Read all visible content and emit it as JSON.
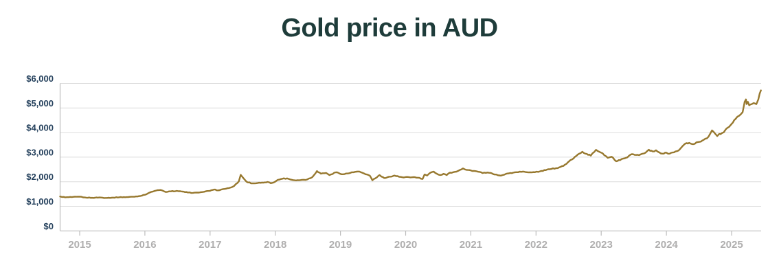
{
  "title": "Gold price in AUD",
  "colors": {
    "title": "#1e3c3a",
    "line": "#97782e",
    "y_label": "#24405c",
    "x_label": "#b0afaf",
    "gridline": "#dcdcdc",
    "axis": "#bdbdbd",
    "background": "#ffffff"
  },
  "chart_data": {
    "type": "line",
    "title": "Gold price in AUD",
    "xlabel": "",
    "ylabel": "",
    "currency": "AUD",
    "legend": "none",
    "grid": "horizontal",
    "x_ticks": [
      2015,
      2016,
      2017,
      2018,
      2019,
      2020,
      2021,
      2022,
      2023,
      2024,
      2025
    ],
    "x_range": [
      2014.7,
      2025.45
    ],
    "y_range": [
      0,
      6000
    ],
    "y_tick_values": [
      0,
      1000,
      2000,
      3000,
      4000,
      5000,
      6000
    ],
    "y_tick_labels": [
      "$0",
      "$1,000",
      "$2,000",
      "$3,000",
      "$4,000",
      "$5,000",
      "$6,000"
    ],
    "series": [
      {
        "name": "Gold price in AUD",
        "color": "#97782e",
        "points": [
          [
            2014.7,
            1400
          ],
          [
            2014.78,
            1365
          ],
          [
            2014.88,
            1375
          ],
          [
            2015.0,
            1390
          ],
          [
            2015.08,
            1360
          ],
          [
            2015.19,
            1345
          ],
          [
            2015.3,
            1360
          ],
          [
            2015.4,
            1342
          ],
          [
            2015.51,
            1355
          ],
          [
            2015.61,
            1370
          ],
          [
            2015.72,
            1375
          ],
          [
            2015.82,
            1388
          ],
          [
            2015.93,
            1420
          ],
          [
            2016.0,
            1470
          ],
          [
            2016.07,
            1555
          ],
          [
            2016.17,
            1640
          ],
          [
            2016.24,
            1665
          ],
          [
            2016.32,
            1580
          ],
          [
            2016.4,
            1608
          ],
          [
            2016.49,
            1628
          ],
          [
            2016.57,
            1600
          ],
          [
            2016.66,
            1562
          ],
          [
            2016.74,
            1548
          ],
          [
            2016.83,
            1558
          ],
          [
            2016.91,
            1592
          ],
          [
            2017.0,
            1632
          ],
          [
            2017.06,
            1682
          ],
          [
            2017.12,
            1648
          ],
          [
            2017.2,
            1700
          ],
          [
            2017.29,
            1742
          ],
          [
            2017.37,
            1830
          ],
          [
            2017.44,
            2010
          ],
          [
            2017.47,
            2280
          ],
          [
            2017.51,
            2150
          ],
          [
            2017.56,
            2000
          ],
          [
            2017.65,
            1932
          ],
          [
            2017.73,
            1948
          ],
          [
            2017.82,
            1962
          ],
          [
            2017.88,
            1992
          ],
          [
            2017.93,
            1942
          ],
          [
            2017.99,
            1988
          ],
          [
            2018.04,
            2078
          ],
          [
            2018.11,
            2122
          ],
          [
            2018.18,
            2138
          ],
          [
            2018.25,
            2082
          ],
          [
            2018.32,
            2052
          ],
          [
            2018.41,
            2078
          ],
          [
            2018.49,
            2092
          ],
          [
            2018.57,
            2190
          ],
          [
            2018.64,
            2435
          ],
          [
            2018.7,
            2330
          ],
          [
            2018.78,
            2358
          ],
          [
            2018.83,
            2272
          ],
          [
            2018.93,
            2382
          ],
          [
            2019.04,
            2305
          ],
          [
            2019.15,
            2358
          ],
          [
            2019.25,
            2412
          ],
          [
            2019.31,
            2392
          ],
          [
            2019.36,
            2338
          ],
          [
            2019.41,
            2292
          ],
          [
            2019.45,
            2248
          ],
          [
            2019.49,
            2060
          ],
          [
            2019.53,
            2132
          ],
          [
            2019.56,
            2182
          ],
          [
            2019.6,
            2272
          ],
          [
            2019.63,
            2208
          ],
          [
            2019.67,
            2152
          ],
          [
            2019.72,
            2182
          ],
          [
            2019.77,
            2208
          ],
          [
            2019.83,
            2252
          ],
          [
            2019.9,
            2202
          ],
          [
            2019.95,
            2182
          ],
          [
            2020.02,
            2196
          ],
          [
            2020.1,
            2182
          ],
          [
            2020.21,
            2162
          ],
          [
            2020.26,
            2112
          ],
          [
            2020.29,
            2292
          ],
          [
            2020.33,
            2252
          ],
          [
            2020.38,
            2368
          ],
          [
            2020.43,
            2412
          ],
          [
            2020.48,
            2322
          ],
          [
            2020.53,
            2272
          ],
          [
            2020.58,
            2322
          ],
          [
            2020.63,
            2272
          ],
          [
            2020.68,
            2368
          ],
          [
            2020.73,
            2388
          ],
          [
            2020.78,
            2412
          ],
          [
            2020.83,
            2478
          ],
          [
            2020.88,
            2542
          ],
          [
            2020.93,
            2482
          ],
          [
            2021.0,
            2462
          ],
          [
            2021.07,
            2432
          ],
          [
            2021.18,
            2352
          ],
          [
            2021.28,
            2362
          ],
          [
            2021.39,
            2292
          ],
          [
            2021.46,
            2248
          ],
          [
            2021.54,
            2322
          ],
          [
            2021.65,
            2368
          ],
          [
            2021.75,
            2412
          ],
          [
            2021.86,
            2388
          ],
          [
            2021.96,
            2392
          ],
          [
            2022.06,
            2422
          ],
          [
            2022.15,
            2472
          ],
          [
            2022.21,
            2508
          ],
          [
            2022.31,
            2552
          ],
          [
            2022.42,
            2642
          ],
          [
            2022.49,
            2792
          ],
          [
            2022.55,
            2902
          ],
          [
            2022.62,
            3052
          ],
          [
            2022.71,
            3222
          ],
          [
            2022.78,
            3132
          ],
          [
            2022.84,
            3062
          ],
          [
            2022.92,
            3298
          ],
          [
            2023.02,
            3158
          ],
          [
            2023.1,
            2972
          ],
          [
            2023.16,
            3018
          ],
          [
            2023.23,
            2832
          ],
          [
            2023.29,
            2878
          ],
          [
            2023.4,
            2992
          ],
          [
            2023.47,
            3122
          ],
          [
            2023.58,
            3082
          ],
          [
            2023.68,
            3182
          ],
          [
            2023.73,
            3302
          ],
          [
            2023.79,
            3232
          ],
          [
            2023.84,
            3282
          ],
          [
            2023.89,
            3192
          ],
          [
            2023.94,
            3142
          ],
          [
            2024.0,
            3182
          ],
          [
            2024.05,
            3142
          ],
          [
            2024.1,
            3192
          ],
          [
            2024.16,
            3242
          ],
          [
            2024.21,
            3332
          ],
          [
            2024.26,
            3482
          ],
          [
            2024.31,
            3572
          ],
          [
            2024.37,
            3552
          ],
          [
            2024.42,
            3532
          ],
          [
            2024.46,
            3602
          ],
          [
            2024.51,
            3622
          ],
          [
            2024.57,
            3702
          ],
          [
            2024.62,
            3762
          ],
          [
            2024.67,
            3948
          ],
          [
            2024.7,
            4088
          ],
          [
            2024.75,
            3948
          ],
          [
            2024.78,
            3858
          ],
          [
            2024.81,
            3948
          ],
          [
            2024.85,
            3978
          ],
          [
            2024.88,
            4012
          ],
          [
            2024.91,
            4132
          ],
          [
            2024.96,
            4228
          ],
          [
            2024.99,
            4322
          ],
          [
            2025.02,
            4412
          ],
          [
            2025.06,
            4552
          ],
          [
            2025.09,
            4648
          ],
          [
            2025.12,
            4692
          ],
          [
            2025.17,
            4832
          ],
          [
            2025.2,
            5252
          ],
          [
            2025.22,
            5348
          ],
          [
            2025.23,
            5158
          ],
          [
            2025.25,
            5252
          ],
          [
            2025.27,
            5112
          ],
          [
            2025.31,
            5158
          ],
          [
            2025.34,
            5202
          ],
          [
            2025.38,
            5158
          ],
          [
            2025.41,
            5348
          ],
          [
            2025.43,
            5578
          ],
          [
            2025.45,
            5718
          ]
        ]
      }
    ]
  }
}
